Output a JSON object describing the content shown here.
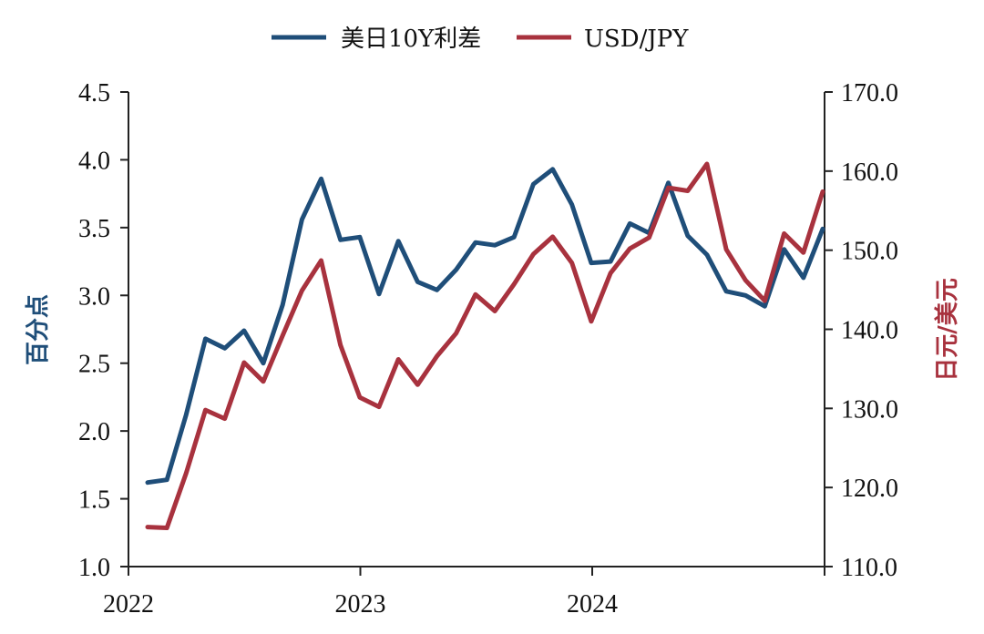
{
  "chart_data": {
    "type": "line",
    "legend": {
      "placement": "top-center"
    },
    "grid": false,
    "x": [
      "2022-02",
      "2022-03",
      "2022-04",
      "2022-05",
      "2022-06",
      "2022-07",
      "2022-08",
      "2022-09",
      "2022-10",
      "2022-11",
      "2022-12",
      "2023-01",
      "2023-02",
      "2023-03",
      "2023-04",
      "2023-05",
      "2023-06",
      "2023-07",
      "2023-08",
      "2023-09",
      "2023-10",
      "2023-11",
      "2023-12",
      "2024-01",
      "2024-02",
      "2024-03",
      "2024-04",
      "2024-05",
      "2024-06",
      "2024-07",
      "2024-08",
      "2024-09",
      "2024-10",
      "2024-11",
      "2024-12",
      "2025-01"
    ],
    "x_ticks": [
      "2022",
      "2023",
      "2024"
    ],
    "y_left": {
      "label": "百分点",
      "ylim": [
        1.0,
        4.5
      ],
      "ticks": [
        "1.0",
        "1.5",
        "2.0",
        "2.5",
        "3.0",
        "3.5",
        "4.0",
        "4.5"
      ]
    },
    "y_right": {
      "label": "日元/美元",
      "ylim": [
        110.0,
        170.0
      ],
      "ticks": [
        "110.0",
        "120.0",
        "130.0",
        "140.0",
        "150.0",
        "160.0",
        "170.0"
      ]
    },
    "series": [
      {
        "name": "美日10Y利差",
        "axis": "left",
        "color": "#1f4e79",
        "values": [
          1.62,
          1.64,
          2.12,
          2.68,
          2.61,
          2.74,
          2.5,
          2.93,
          3.56,
          3.86,
          3.41,
          3.43,
          3.01,
          3.4,
          3.1,
          3.04,
          3.19,
          3.39,
          3.37,
          3.43,
          3.82,
          3.93,
          3.67,
          3.24,
          3.25,
          3.53,
          3.46,
          3.83,
          3.44,
          3.3,
          3.03,
          3.0,
          2.92,
          3.34,
          3.13,
          3.49
        ]
      },
      {
        "name": "USD/JPY",
        "axis": "right",
        "color": "#a8323e",
        "values": [
          115.0,
          114.9,
          121.8,
          129.8,
          128.7,
          135.8,
          133.4,
          139.2,
          144.9,
          148.7,
          138.0,
          131.4,
          130.2,
          136.2,
          133.0,
          136.6,
          139.5,
          144.4,
          142.3,
          145.7,
          149.5,
          151.7,
          148.4,
          141.0,
          147.1,
          150.2,
          151.6,
          157.9,
          157.5,
          160.9,
          150.1,
          146.2,
          143.6,
          152.1,
          149.7,
          157.4
        ]
      }
    ]
  }
}
